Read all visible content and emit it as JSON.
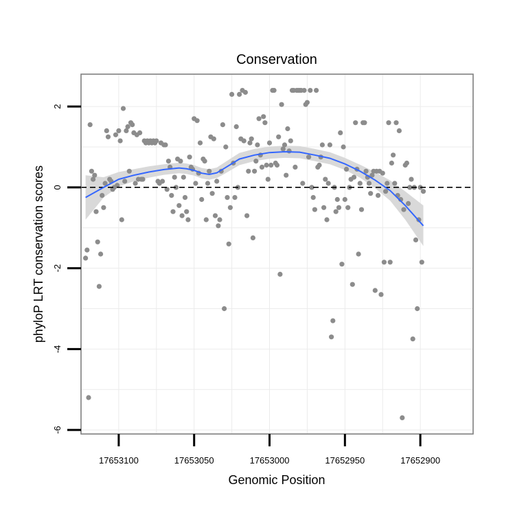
{
  "chart_data": {
    "type": "scatter",
    "title": "Conservation",
    "xlabel": "Genomic Position",
    "ylabel": "phyloP LRT conservation scores",
    "x_reversed": true,
    "xlim": [
      17653125,
      17652865
    ],
    "ylim": [
      -6.1,
      2.8
    ],
    "x_ticks": [
      17653100,
      17653050,
      17653000,
      17652950,
      17652900
    ],
    "x_tick_labels": [
      "17653100",
      "17653050",
      "17653000",
      "17652950",
      "17652900"
    ],
    "y_ticks": [
      -6,
      -4,
      -2,
      0,
      2
    ],
    "y_tick_labels": [
      "-6",
      "-4",
      "-2",
      "0",
      "2"
    ],
    "reference_line": {
      "y": 0,
      "style": "dashed"
    },
    "colors": {
      "points": "#8c8c8c",
      "smooth": "#3366ff",
      "band": "#d9d9d9",
      "grid": "#ebebeb",
      "frame": "#7f7f7f"
    },
    "points": [
      [
        17653122,
        -1.75
      ],
      [
        17653121,
        -1.55
      ],
      [
        17653120,
        -5.2
      ],
      [
        17653119,
        1.55
      ],
      [
        17653118,
        0.4
      ],
      [
        17653117,
        0.2
      ],
      [
        17653116,
        0.3
      ],
      [
        17653115,
        -0.6
      ],
      [
        17653114,
        -1.35
      ],
      [
        17653113,
        -2.45
      ],
      [
        17653112,
        -1.65
      ],
      [
        17653111,
        -0.2
      ],
      [
        17653110,
        -0.5
      ],
      [
        17653109,
        0.1
      ],
      [
        17653108,
        1.4
      ],
      [
        17653107,
        1.25
      ],
      [
        17653106,
        0.2
      ],
      [
        17653105,
        0.15
      ],
      [
        17653104,
        -0.05
      ],
      [
        17653103,
        0.0
      ],
      [
        17653102,
        1.3
      ],
      [
        17653101,
        0.05
      ],
      [
        17653100,
        1.4
      ],
      [
        17653099,
        1.15
      ],
      [
        17653098,
        -0.8
      ],
      [
        17653097,
        1.95
      ],
      [
        17653096,
        0.15
      ],
      [
        17653095,
        1.4
      ],
      [
        17653094,
        1.5
      ],
      [
        17653093,
        0.4
      ],
      [
        17653092,
        1.6
      ],
      [
        17653091,
        1.55
      ],
      [
        17653090,
        1.35
      ],
      [
        17653089,
        0.1
      ],
      [
        17653088,
        1.3
      ],
      [
        17653087,
        0.2
      ],
      [
        17653086,
        1.35
      ],
      [
        17653085,
        0.2
      ],
      [
        17653084,
        0.2
      ],
      [
        17653083,
        1.15
      ],
      [
        17653082,
        1.1
      ],
      [
        17653081,
        1.15
      ],
      [
        17653080,
        1.1
      ],
      [
        17653079,
        1.15
      ],
      [
        17653078,
        1.1
      ],
      [
        17653077,
        1.15
      ],
      [
        17653076,
        1.1
      ],
      [
        17653075,
        1.15
      ],
      [
        17653074,
        0.15
      ],
      [
        17653073,
        0.1
      ],
      [
        17653072,
        1.1
      ],
      [
        17653071,
        0.15
      ],
      [
        17653070,
        1.05
      ],
      [
        17653069,
        1.05
      ],
      [
        17653068,
        -0.05
      ],
      [
        17653067,
        0.65
      ],
      [
        17653066,
        0.5
      ],
      [
        17653065,
        -0.2
      ],
      [
        17653064,
        -0.6
      ],
      [
        17653063,
        0.25
      ],
      [
        17653062,
        0.0
      ],
      [
        17653061,
        0.7
      ],
      [
        17653060,
        -0.45
      ],
      [
        17653059,
        0.65
      ],
      [
        17653058,
        -0.7
      ],
      [
        17653057,
        0.25
      ],
      [
        17653056,
        -0.25
      ],
      [
        17653055,
        -0.6
      ],
      [
        17653054,
        -0.8
      ],
      [
        17653053,
        0.75
      ],
      [
        17653052,
        0.5
      ],
      [
        17653051,
        0.45
      ],
      [
        17653050,
        1.7
      ],
      [
        17653049,
        0.1
      ],
      [
        17653048,
        1.65
      ],
      [
        17653047,
        0.35
      ],
      [
        17653046,
        1.1
      ],
      [
        17653045,
        -0.3
      ],
      [
        17653044,
        0.7
      ],
      [
        17653043,
        0.65
      ],
      [
        17653042,
        -0.8
      ],
      [
        17653041,
        0.1
      ],
      [
        17653040,
        0.4
      ],
      [
        17653039,
        1.25
      ],
      [
        17653038,
        -0.15
      ],
      [
        17653037,
        1.2
      ],
      [
        17653036,
        -0.7
      ],
      [
        17653035,
        0.15
      ],
      [
        17653034,
        -0.95
      ],
      [
        17653033,
        -0.8
      ],
      [
        17653032,
        0.4
      ],
      [
        17653031,
        1.55
      ],
      [
        17653030,
        -3.0
      ],
      [
        17653029,
        1.0
      ],
      [
        17653028,
        -0.25
      ],
      [
        17653027,
        -1.4
      ],
      [
        17653026,
        -0.5
      ],
      [
        17653025,
        2.3
      ],
      [
        17653024,
        0.6
      ],
      [
        17653023,
        -0.25
      ],
      [
        17653022,
        1.5
      ],
      [
        17653021,
        0.0
      ],
      [
        17653020,
        2.3
      ],
      [
        17653019,
        1.2
      ],
      [
        17653018,
        2.4
      ],
      [
        17653017,
        1.15
      ],
      [
        17653016,
        2.35
      ],
      [
        17653015,
        -0.7
      ],
      [
        17653014,
        0.4
      ],
      [
        17653013,
        1.1
      ],
      [
        17653012,
        1.2
      ],
      [
        17653011,
        -1.25
      ],
      [
        17653010,
        0.4
      ],
      [
        17653009,
        0.65
      ],
      [
        17653008,
        1.05
      ],
      [
        17653007,
        1.7
      ],
      [
        17653006,
        0.8
      ],
      [
        17653005,
        0.5
      ],
      [
        17653004,
        1.75
      ],
      [
        17653003,
        1.6
      ],
      [
        17653002,
        0.55
      ],
      [
        17653001,
        0.2
      ],
      [
        17653000,
        1.1
      ],
      [
        17652999,
        0.55
      ],
      [
        17652998,
        2.4
      ],
      [
        17652997,
        2.4
      ],
      [
        17652996,
        0.6
      ],
      [
        17652995,
        0.55
      ],
      [
        17652994,
        1.25
      ],
      [
        17652993,
        -2.15
      ],
      [
        17652992,
        2.05
      ],
      [
        17652991,
        0.95
      ],
      [
        17652990,
        1.05
      ],
      [
        17652989,
        0.3
      ],
      [
        17652988,
        1.45
      ],
      [
        17652987,
        0.9
      ],
      [
        17652986,
        1.15
      ],
      [
        17652985,
        2.4
      ],
      [
        17652984,
        2.4
      ],
      [
        17652983,
        0.5
      ],
      [
        17652982,
        2.4
      ],
      [
        17652981,
        2.4
      ],
      [
        17652980,
        2.4
      ],
      [
        17652979,
        2.4
      ],
      [
        17652978,
        0.1
      ],
      [
        17652977,
        2.4
      ],
      [
        17652976,
        2.05
      ],
      [
        17652975,
        2.1
      ],
      [
        17652974,
        0.75
      ],
      [
        17652973,
        2.4
      ],
      [
        17652972,
        0.0
      ],
      [
        17652971,
        -0.25
      ],
      [
        17652970,
        -0.55
      ],
      [
        17652969,
        2.4
      ],
      [
        17652968,
        0.5
      ],
      [
        17652967,
        0.55
      ],
      [
        17652966,
        0.75
      ],
      [
        17652965,
        1.05
      ],
      [
        17652964,
        -0.5
      ],
      [
        17652963,
        0.2
      ],
      [
        17652962,
        -0.8
      ],
      [
        17652961,
        0.1
      ],
      [
        17652960,
        1.05
      ],
      [
        17652959,
        -3.7
      ],
      [
        17652958,
        -3.3
      ],
      [
        17652957,
        0.0
      ],
      [
        17652956,
        -0.6
      ],
      [
        17652955,
        -0.3
      ],
      [
        17652954,
        -0.5
      ],
      [
        17652953,
        1.35
      ],
      [
        17652952,
        -1.9
      ],
      [
        17652951,
        1.0
      ],
      [
        17652950,
        -0.3
      ],
      [
        17652949,
        0.45
      ],
      [
        17652948,
        -0.5
      ],
      [
        17652947,
        0.0
      ],
      [
        17652946,
        0.2
      ],
      [
        17652945,
        -2.4
      ],
      [
        17652944,
        0.25
      ],
      [
        17652943,
        1.6
      ],
      [
        17652942,
        0.45
      ],
      [
        17652941,
        -1.65
      ],
      [
        17652940,
        0.1
      ],
      [
        17652939,
        -0.55
      ],
      [
        17652938,
        1.6
      ],
      [
        17652937,
        1.6
      ],
      [
        17652936,
        0.4
      ],
      [
        17652935,
        0.25
      ],
      [
        17652934,
        0.1
      ],
      [
        17652933,
        -0.15
      ],
      [
        17652932,
        0.3
      ],
      [
        17652931,
        0.4
      ],
      [
        17652930,
        -2.55
      ],
      [
        17652929,
        0.4
      ],
      [
        17652928,
        -0.2
      ],
      [
        17652927,
        0.4
      ],
      [
        17652926,
        -2.65
      ],
      [
        17652925,
        0.35
      ],
      [
        17652924,
        -1.85
      ],
      [
        17652923,
        -0.1
      ],
      [
        17652922,
        0.1
      ],
      [
        17652921,
        1.6
      ],
      [
        17652920,
        -1.85
      ],
      [
        17652919,
        0.6
      ],
      [
        17652918,
        0.8
      ],
      [
        17652917,
        0.1
      ],
      [
        17652916,
        1.6
      ],
      [
        17652915,
        -0.2
      ],
      [
        17652914,
        1.4
      ],
      [
        17652913,
        -0.3
      ],
      [
        17652912,
        -5.7
      ],
      [
        17652911,
        -0.55
      ],
      [
        17652910,
        0.55
      ],
      [
        17652909,
        0.6
      ],
      [
        17652908,
        -0.4
      ],
      [
        17652907,
        0.0
      ],
      [
        17652906,
        0.2
      ],
      [
        17652905,
        -3.75
      ],
      [
        17652904,
        0.0
      ],
      [
        17652903,
        -1.3
      ],
      [
        17652902,
        -3.0
      ],
      [
        17652901,
        -0.8
      ],
      [
        17652900,
        0.0
      ],
      [
        17652899,
        -1.85
      ],
      [
        17652898,
        -0.1
      ]
    ],
    "smooth": {
      "x": [
        17653122,
        17653110,
        17653100,
        17653090,
        17653080,
        17653070,
        17653060,
        17653055,
        17653050,
        17653045,
        17653040,
        17653035,
        17653030,
        17653020,
        17653010,
        17653000,
        17652990,
        17652980,
        17652970,
        17652960,
        17652950,
        17652940,
        17652930,
        17652920,
        17652910,
        17652898
      ],
      "y": [
        -0.25,
        0.0,
        0.2,
        0.3,
        0.38,
        0.44,
        0.48,
        0.46,
        0.42,
        0.35,
        0.32,
        0.36,
        0.47,
        0.7,
        0.8,
        0.86,
        0.88,
        0.87,
        0.8,
        0.72,
        0.58,
        0.4,
        0.18,
        -0.08,
        -0.45,
        -0.95
      ],
      "band": [
        0.55,
        0.25,
        0.18,
        0.15,
        0.14,
        0.13,
        0.13,
        0.13,
        0.13,
        0.13,
        0.13,
        0.13,
        0.14,
        0.15,
        0.15,
        0.15,
        0.15,
        0.15,
        0.15,
        0.15,
        0.15,
        0.16,
        0.2,
        0.25,
        0.35,
        0.5
      ]
    }
  }
}
